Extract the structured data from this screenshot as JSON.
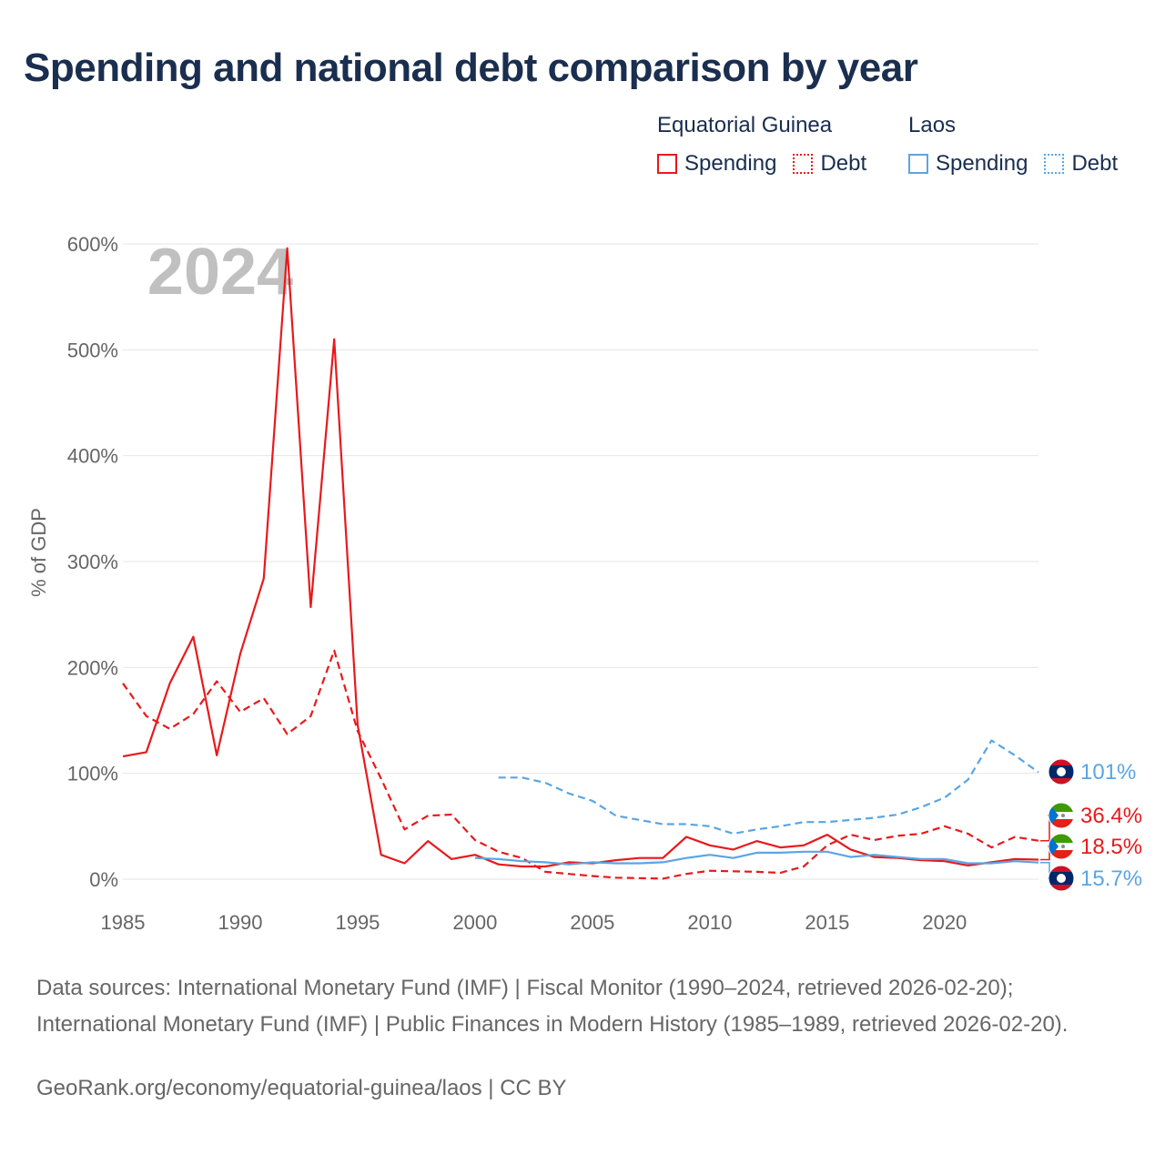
{
  "title": "Spending and national debt comparison by year",
  "legend": {
    "groups": [
      {
        "name": "Equatorial Guinea",
        "color": "#e8191c",
        "items": [
          {
            "label": "Spending",
            "style": "solid"
          },
          {
            "label": "Debt",
            "style": "dotted"
          }
        ]
      },
      {
        "name": "Laos",
        "color": "#5aa5e3",
        "items": [
          {
            "label": "Spending",
            "style": "solid"
          },
          {
            "label": "Debt",
            "style": "dotted"
          }
        ]
      }
    ]
  },
  "footer": {
    "sources": "Data sources: International Monetary Fund (IMF) | Fiscal Monitor (1990–2024, retrieved 2026-02-20); International Monetary Fund (IMF) | Public Finances in Modern History (1985–1989, retrieved 2026-02-20).",
    "credit": "GeoRank.org/economy/equatorial-guinea/laos | CC BY"
  },
  "chart_data": {
    "type": "line",
    "title": "Spending and national debt comparison by year",
    "year_label": "2024",
    "ylabel": "% of GDP",
    "xlabel": "",
    "xlim": [
      1985,
      2024
    ],
    "ylim": [
      0,
      600
    ],
    "x_ticks": [
      1985,
      1990,
      1995,
      2000,
      2005,
      2010,
      2015,
      2020
    ],
    "y_ticks": [
      0,
      100,
      200,
      300,
      400,
      500,
      600
    ],
    "y_tick_labels": [
      "0%",
      "100%",
      "200%",
      "300%",
      "400%",
      "500%",
      "600%"
    ],
    "grid": true,
    "series": [
      {
        "name": "Equatorial Guinea Spending",
        "color": "#e8191c",
        "dash": "solid",
        "x": [
          1985,
          1986,
          1987,
          1988,
          1989,
          1990,
          1991,
          1992,
          1993,
          1994,
          1995,
          1996,
          1997,
          1998,
          1999,
          2000,
          2001,
          2002,
          2003,
          2004,
          2005,
          2006,
          2007,
          2008,
          2009,
          2010,
          2011,
          2012,
          2013,
          2014,
          2015,
          2016,
          2017,
          2018,
          2019,
          2020,
          2021,
          2022,
          2023,
          2024
        ],
        "values": [
          116,
          120,
          185,
          229,
          117,
          213,
          284,
          596,
          257,
          510,
          146,
          23,
          15,
          36,
          19,
          23,
          14,
          12,
          12,
          16,
          15,
          18,
          20,
          20,
          40,
          32,
          28,
          36,
          30,
          32,
          42,
          28,
          21,
          20,
          18,
          17,
          13,
          16,
          19,
          18.5
        ]
      },
      {
        "name": "Equatorial Guinea Debt",
        "color": "#e8191c",
        "dash": "dashed",
        "x": [
          1985,
          1986,
          1987,
          1988,
          1989,
          1990,
          1991,
          1992,
          1993,
          1994,
          1995,
          1996,
          1997,
          1998,
          1999,
          2000,
          2001,
          2002,
          2003,
          2004,
          2005,
          2006,
          2007,
          2008,
          2009,
          2010,
          2011,
          2012,
          2013,
          2014,
          2015,
          2016,
          2017,
          2018,
          2019,
          2020,
          2021,
          2022,
          2023,
          2024
        ],
        "values": [
          185,
          154,
          142,
          156,
          187,
          158,
          171,
          137,
          154,
          216,
          140,
          95,
          47,
          60,
          61,
          37,
          26,
          20,
          7,
          5,
          3,
          1.5,
          1,
          0.5,
          5,
          8,
          7.5,
          7,
          6,
          12,
          32,
          42,
          37,
          41,
          43,
          50,
          43,
          30,
          40,
          36.4
        ]
      },
      {
        "name": "Laos Spending",
        "color": "#5aa5e3",
        "dash": "solid",
        "x": [
          2000,
          2001,
          2002,
          2003,
          2004,
          2005,
          2006,
          2007,
          2008,
          2009,
          2010,
          2011,
          2012,
          2013,
          2014,
          2015,
          2016,
          2017,
          2018,
          2019,
          2020,
          2021,
          2022,
          2023,
          2024
        ],
        "values": [
          20,
          19,
          17,
          16,
          14,
          16,
          15,
          15,
          16,
          20,
          23,
          20,
          25,
          25,
          26,
          26,
          21,
          23,
          21,
          19,
          19,
          15,
          15,
          17,
          15.7
        ]
      },
      {
        "name": "Laos Debt",
        "color": "#5aa5e3",
        "dash": "dashed",
        "x": [
          2001,
          2002,
          2003,
          2004,
          2005,
          2006,
          2007,
          2008,
          2009,
          2010,
          2011,
          2012,
          2013,
          2014,
          2015,
          2016,
          2017,
          2018,
          2019,
          2020,
          2021,
          2022,
          2023,
          2024
        ],
        "values": [
          96,
          96,
          91,
          81,
          74,
          60,
          56,
          52,
          52,
          50,
          43,
          47,
          50,
          54,
          54,
          56,
          58,
          61,
          68,
          77,
          94,
          131,
          117,
          101
        ]
      }
    ],
    "end_labels": [
      {
        "text": "101%",
        "color": "#5aa5e3",
        "flag": "laos"
      },
      {
        "text": "36.4%",
        "color": "#e8191c",
        "flag": "equatorial-guinea"
      },
      {
        "text": "18.5%",
        "color": "#e8191c",
        "flag": "equatorial-guinea"
      },
      {
        "text": "15.7%",
        "color": "#5aa5e3",
        "flag": "laos"
      }
    ]
  }
}
